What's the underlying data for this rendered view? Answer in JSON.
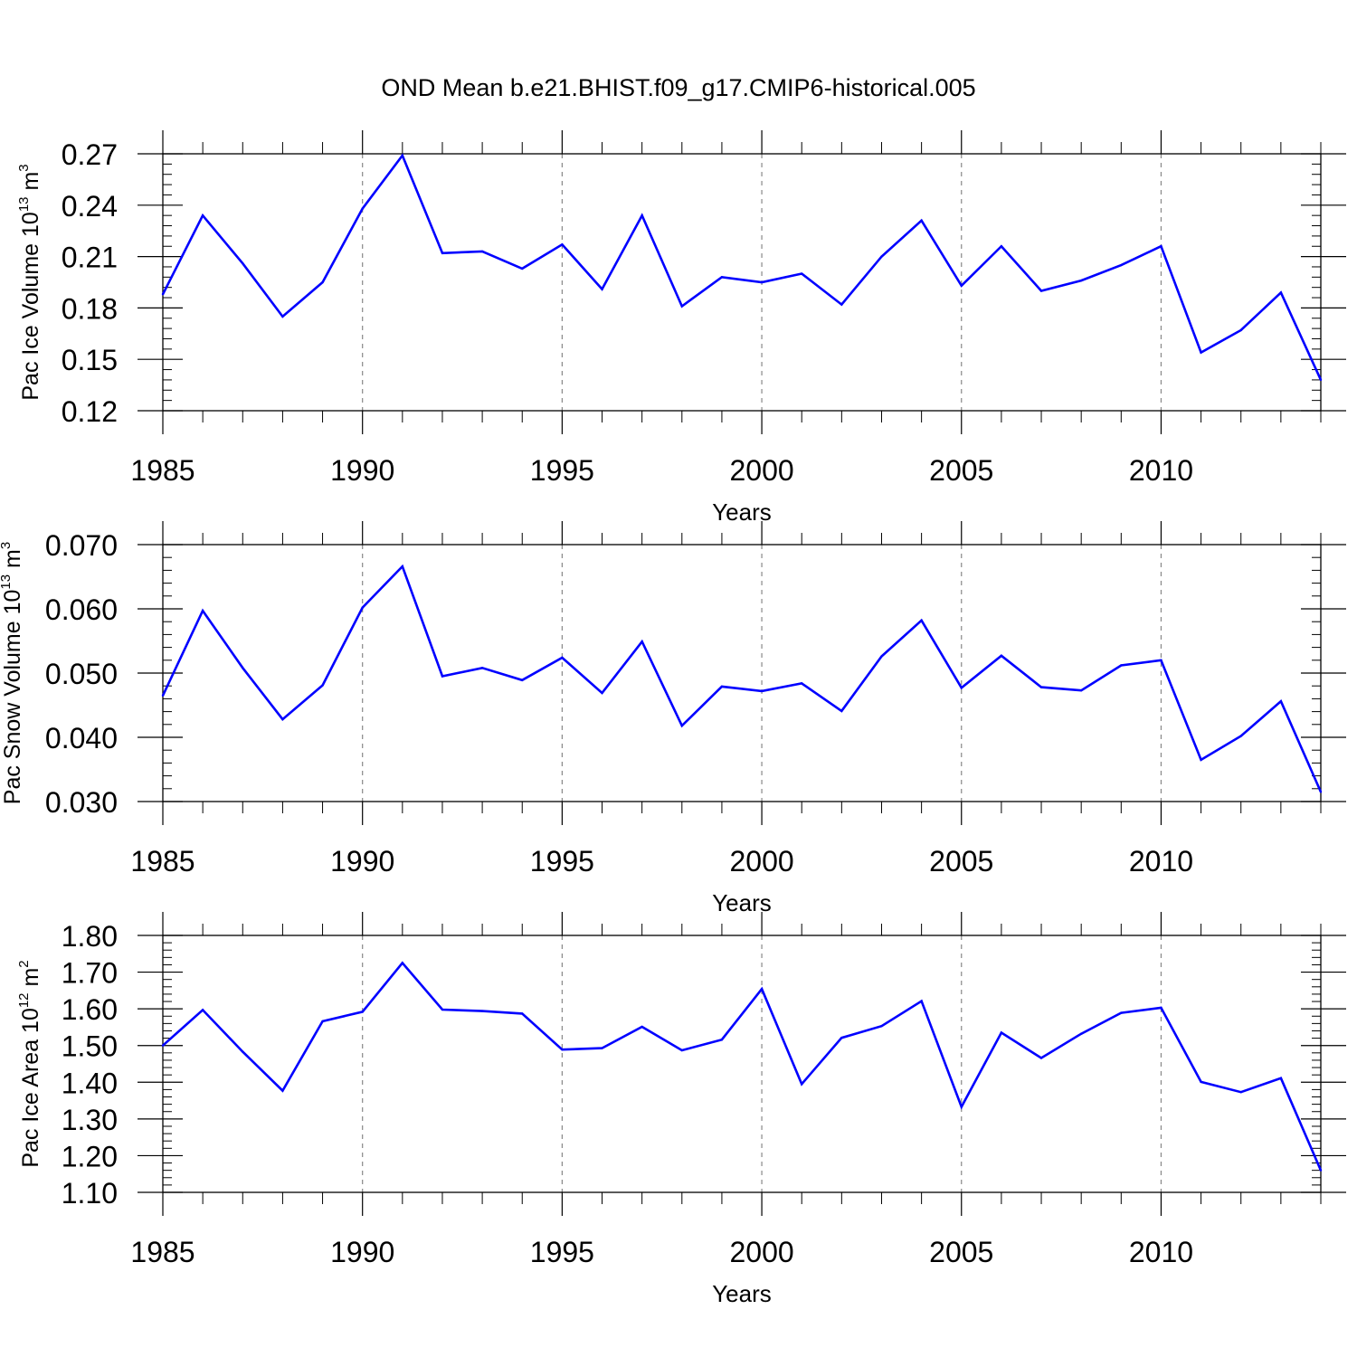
{
  "title": "OND Mean b.e21.BHIST.f09_g17.CMIP6-historical.005",
  "colors": {
    "series": "#0000ff",
    "axis": "#000000",
    "grid": "#888888",
    "background": "#ffffff"
  },
  "chart_data": [
    {
      "type": "line",
      "name": "Pac Ice Volume",
      "ylabel": {
        "prefix": "Pac Ice Volume 10",
        "exp": "13",
        "mid": " m",
        "unit_exp": "3"
      },
      "xlabel": "Years",
      "xlim": [
        1985,
        2014
      ],
      "ylim": [
        0.12,
        0.27
      ],
      "xticks": [
        1985,
        1990,
        1995,
        2000,
        2005,
        2010
      ],
      "xtick_labels": [
        "1985",
        "1990",
        "1995",
        "2000",
        "2005",
        "2010"
      ],
      "yticks": [
        0.12,
        0.15,
        0.18,
        0.21,
        0.24,
        0.27
      ],
      "ytick_labels": [
        "0.12",
        "0.15",
        "0.18",
        "0.21",
        "0.24",
        "0.27"
      ],
      "yminor_step": 0.006,
      "grid": "dashed vertical at major x ticks",
      "x": [
        1985,
        1986,
        1987,
        1988,
        1989,
        1990,
        1991,
        1992,
        1993,
        1994,
        1995,
        1996,
        1997,
        1998,
        1999,
        2000,
        2001,
        2002,
        2003,
        2004,
        2005,
        2006,
        2007,
        2008,
        2009,
        2010,
        2011,
        2012,
        2013,
        2014
      ],
      "values": [
        0.188,
        0.234,
        0.206,
        0.175,
        0.195,
        0.238,
        0.269,
        0.212,
        0.213,
        0.203,
        0.217,
        0.191,
        0.234,
        0.181,
        0.198,
        0.195,
        0.2,
        0.182,
        0.21,
        0.231,
        0.193,
        0.216,
        0.19,
        0.196,
        0.205,
        0.216,
        0.154,
        0.167,
        0.189,
        0.138
      ]
    },
    {
      "type": "line",
      "name": "Pac Snow Volume",
      "ylabel": {
        "prefix": "Pac Snow Volume 10",
        "exp": "13",
        "mid": " m",
        "unit_exp": "3"
      },
      "xlabel": "Years",
      "xlim": [
        1985,
        2014
      ],
      "ylim": [
        0.03,
        0.07
      ],
      "xticks": [
        1985,
        1990,
        1995,
        2000,
        2005,
        2010
      ],
      "xtick_labels": [
        "1985",
        "1990",
        "1995",
        "2000",
        "2005",
        "2010"
      ],
      "yticks": [
        0.03,
        0.04,
        0.05,
        0.06,
        0.07
      ],
      "ytick_labels": [
        "0.030",
        "0.040",
        "0.050",
        "0.060",
        "0.070"
      ],
      "yminor_step": 0.002,
      "grid": "dashed vertical at major x ticks",
      "x": [
        1985,
        1986,
        1987,
        1988,
        1989,
        1990,
        1991,
        1992,
        1993,
        1994,
        1995,
        1996,
        1997,
        1998,
        1999,
        2000,
        2001,
        2002,
        2003,
        2004,
        2005,
        2006,
        2007,
        2008,
        2009,
        2010,
        2011,
        2012,
        2013,
        2014
      ],
      "values": [
        0.0465,
        0.0597,
        0.0508,
        0.0428,
        0.0481,
        0.0602,
        0.0666,
        0.0495,
        0.0508,
        0.0489,
        0.0524,
        0.0469,
        0.0549,
        0.0418,
        0.0479,
        0.0472,
        0.0484,
        0.0441,
        0.0526,
        0.0582,
        0.0477,
        0.0527,
        0.0478,
        0.0473,
        0.0512,
        0.052,
        0.0365,
        0.0402,
        0.0456,
        0.0315
      ]
    },
    {
      "type": "line",
      "name": "Pac Ice Area",
      "ylabel": {
        "prefix": "Pac Ice Area 10",
        "exp": "12",
        "mid": " m",
        "unit_exp": "2"
      },
      "xlabel": "Years",
      "xlim": [
        1985,
        2014
      ],
      "ylim": [
        1.1,
        1.8
      ],
      "xticks": [
        1985,
        1990,
        1995,
        2000,
        2005,
        2010
      ],
      "xtick_labels": [
        "1985",
        "1990",
        "1995",
        "2000",
        "2005",
        "2010"
      ],
      "yticks": [
        1.1,
        1.2,
        1.3,
        1.4,
        1.5,
        1.6,
        1.7,
        1.8
      ],
      "ytick_labels": [
        "1.10",
        "1.20",
        "1.30",
        "1.40",
        "1.50",
        "1.60",
        "1.70",
        "1.80"
      ],
      "yminor_step": 0.02,
      "grid": "dashed vertical at major x ticks",
      "x": [
        1985,
        1986,
        1987,
        1988,
        1989,
        1990,
        1991,
        1992,
        1993,
        1994,
        1995,
        1996,
        1997,
        1998,
        1999,
        2000,
        2001,
        2002,
        2003,
        2004,
        2005,
        2006,
        2007,
        2008,
        2009,
        2010,
        2011,
        2012,
        2013,
        2014
      ],
      "values": [
        1.5,
        1.597,
        1.483,
        1.377,
        1.566,
        1.592,
        1.725,
        1.598,
        1.594,
        1.587,
        1.489,
        1.493,
        1.551,
        1.487,
        1.516,
        1.654,
        1.395,
        1.521,
        1.553,
        1.621,
        1.333,
        1.535,
        1.466,
        1.532,
        1.589,
        1.603,
        1.401,
        1.373,
        1.411,
        1.16
      ]
    }
  ]
}
